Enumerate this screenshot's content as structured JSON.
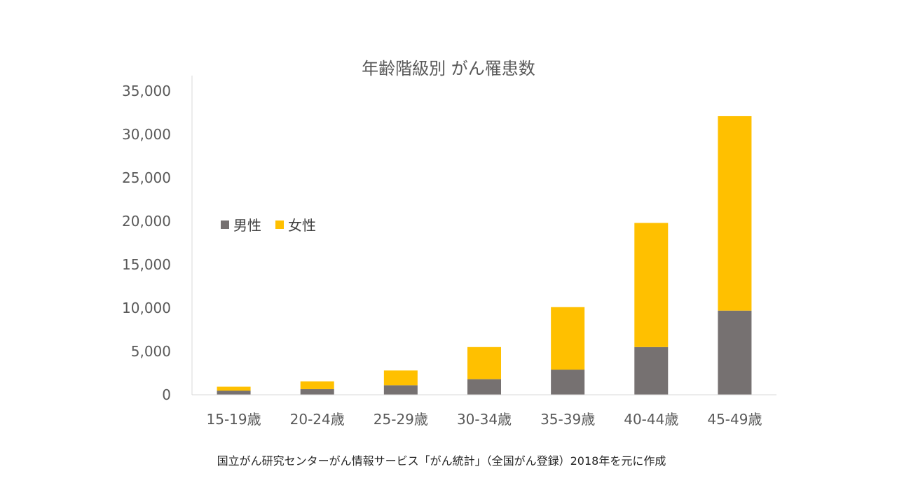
{
  "chart_data": {
    "type": "bar",
    "stacked": true,
    "title": "年齢階級別 がん罹患数",
    "categories": [
      "15-19歳",
      "20-24歳",
      "25-29歳",
      "30-34歳",
      "35-39歳",
      "40-44歳",
      "45-49歳"
    ],
    "series": [
      {
        "name": "男性",
        "color": "#767171",
        "values": [
          480,
          650,
          1100,
          1800,
          2900,
          5500,
          9700
        ]
      },
      {
        "name": "女性",
        "color": "#FFC000",
        "values": [
          450,
          900,
          1700,
          3700,
          7200,
          14300,
          22400
        ]
      }
    ],
    "ylim": [
      0,
      35000
    ],
    "yticks": [
      "0",
      "5,000",
      "10,000",
      "15,000",
      "20,000",
      "25,000",
      "30,000",
      "35,000"
    ],
    "ytick_values": [
      0,
      5000,
      10000,
      15000,
      20000,
      25000,
      30000,
      35000
    ],
    "grid": false,
    "legend_position": "top-left",
    "source": "国立がん研究センターがん情報サービス「がん統計」（全国がん登録）2018年を元に作成"
  }
}
